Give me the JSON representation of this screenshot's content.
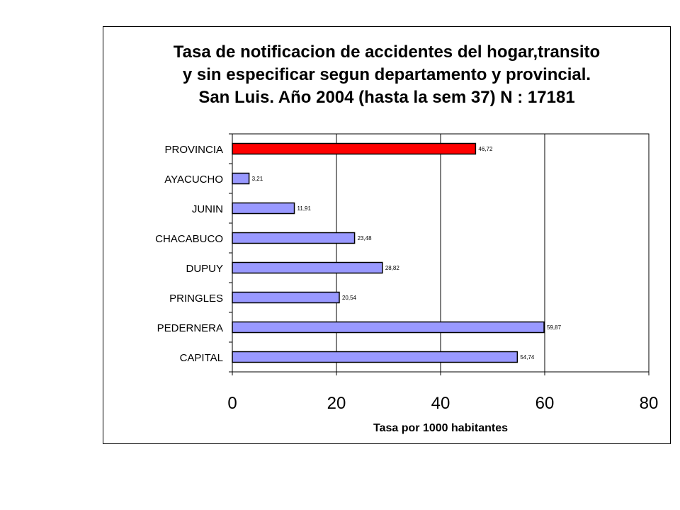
{
  "chart_data": {
    "type": "bar",
    "orientation": "horizontal",
    "title_lines": [
      "Tasa de notificacion de accidentes del hogar,transito",
      "y sin especificar segun departamento y provincial.",
      "San Luis. Año 2004 (hasta la sem 37) N : 17181"
    ],
    "xlabel": "Tasa por 1000 habitantes",
    "ylabel": "",
    "xlim": [
      0,
      80
    ],
    "xticks": [
      "0",
      "20",
      "40",
      "60",
      "80"
    ],
    "grid": "vertical major",
    "categories": [
      "PROVINCIA",
      "AYACUCHO",
      "JUNIN",
      "CHACABUCO",
      "DUPUY",
      "PRINGLES",
      "PEDERNERA",
      "CAPITAL"
    ],
    "values": [
      46.72,
      3.21,
      11.91,
      23.48,
      28.82,
      20.54,
      59.87,
      54.74
    ],
    "value_labels": [
      "46,72",
      "3,21",
      "11,91",
      "23,48",
      "28,82",
      "20,54",
      "59,87",
      "54,74"
    ],
    "colors": [
      "#ff0000",
      "#9999ff",
      "#9999ff",
      "#9999ff",
      "#9999ff",
      "#9999ff",
      "#9999ff",
      "#9999ff"
    ]
  }
}
